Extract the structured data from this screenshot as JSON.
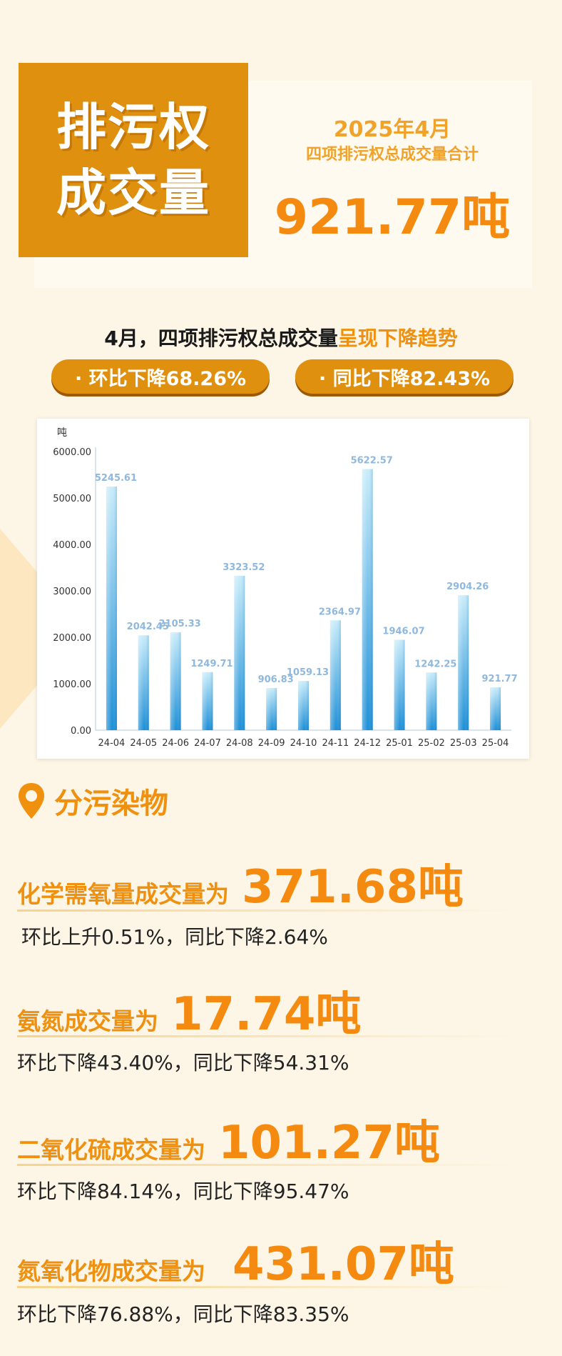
{
  "hero": {
    "line1": "排污权",
    "line2": "成交量"
  },
  "summary": {
    "date": "2025年4月",
    "subtitle": "四项排污权总成交量合计",
    "total": "921.77吨"
  },
  "trend": {
    "prefix": "4月，四项排污权总成交量",
    "highlight": "呈现下降趋势"
  },
  "pills": {
    "mom": "· 环比下降68.26%",
    "yoy": "· 同比下降82.43%"
  },
  "chart_data": {
    "type": "bar",
    "ylabel": "吨",
    "ylim": [
      0,
      6000
    ],
    "y_ticks": [
      "0.00",
      "1000.00",
      "2000.00",
      "3000.00",
      "4000.00",
      "5000.00",
      "6000.00"
    ],
    "categories": [
      "24-04",
      "24-05",
      "24-06",
      "24-07",
      "24-08",
      "24-09",
      "24-10",
      "24-11",
      "24-12",
      "25-01",
      "25-02",
      "25-03",
      "25-04"
    ],
    "values": [
      5245.61,
      2042.45,
      2105.33,
      1249.71,
      3323.52,
      906.83,
      1059.13,
      2364.97,
      5622.57,
      1946.07,
      1242.25,
      2904.26,
      921.77
    ],
    "value_labels": [
      "5245.61",
      "2042.45",
      "2105.33",
      "1249.71",
      "3323.52",
      "906.83",
      "1059.13",
      "2364.97",
      "5622.57",
      "1946.07",
      "1242.25",
      "2904.26",
      "921.77"
    ],
    "colors": {
      "bar_top": "#c9ecfa",
      "bar_bottom": "#1b8ed6",
      "label": "#8fb8de"
    }
  },
  "section": {
    "title": "分污染物"
  },
  "pollutants": [
    {
      "label": "化学需氧量成交量为",
      "value": "371.68吨",
      "note": "环比上升0.51%，同比下降2.64%"
    },
    {
      "label": "氨氮成交量为",
      "value": "17.74吨",
      "note": "环比下降43.40%，同比下降54.31%"
    },
    {
      "label": "二氧化硫成交量为",
      "value": "101.27吨",
      "note": "环比下降84.14%，同比下降95.47%"
    },
    {
      "label": "氮氧化物成交量为",
      "value": "431.07吨",
      "note": "环比下降76.88%，同比下降83.35%"
    }
  ],
  "colors": {
    "accent": "#e0900f",
    "value": "#f58a10",
    "background": "#fdf6e6"
  }
}
